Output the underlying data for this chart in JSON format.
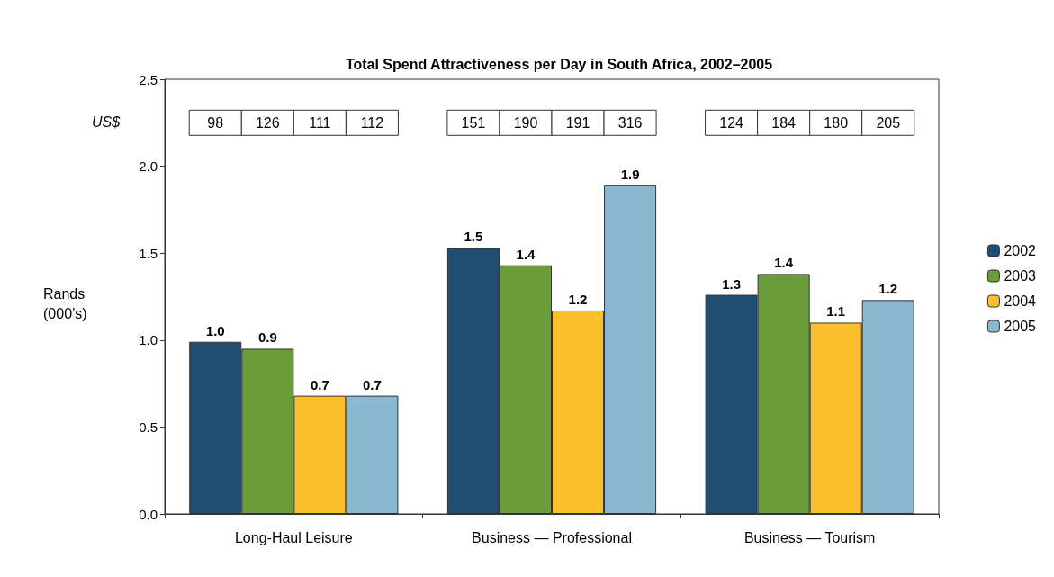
{
  "chart_data": {
    "type": "bar",
    "title": "Total Spend Attractiveness per Day in South Africa, 2002–2005",
    "ylabel": "Rands\n(000’s)",
    "categories": [
      "Long-Haul Leisure",
      "Business — Professional",
      "Business — Tourism"
    ],
    "series": [
      {
        "name": "2002",
        "color": "#1f4e72",
        "values": [
          0.99,
          1.53,
          1.26
        ],
        "value_labels": [
          "1.0",
          "1.5",
          "1.3"
        ]
      },
      {
        "name": "2003",
        "color": "#6a9c3a",
        "values": [
          0.95,
          1.43,
          1.38
        ],
        "value_labels": [
          "0.9",
          "1.4",
          "1.4"
        ]
      },
      {
        "name": "2004",
        "color": "#fbbf2c",
        "values": [
          0.68,
          1.17,
          1.1
        ],
        "value_labels": [
          "0.7",
          "1.2",
          "1.1"
        ]
      },
      {
        "name": "2005",
        "color": "#8ab8cf",
        "values": [
          0.68,
          1.89,
          1.23
        ],
        "value_labels": [
          "0.7",
          "1.9",
          "1.2"
        ]
      }
    ],
    "ylim": [
      0,
      2.5
    ],
    "yticks": [
      {
        "value": 0,
        "label": "0.0"
      },
      {
        "value": 0.5,
        "label": "0.5"
      },
      {
        "value": 1,
        "label": "1.0"
      },
      {
        "value": 1.5,
        "label": "1.5"
      },
      {
        "value": 2,
        "label": "2.0"
      },
      {
        "value": 2.5,
        "label": "2.5"
      }
    ],
    "annotations": [
      "US$",
      "98",
      "126",
      "111",
      "112",
      "151",
      "190",
      "191",
      "316",
      "124",
      "184",
      "180",
      "205"
    ],
    "legend": "right",
    "grid": false
  }
}
